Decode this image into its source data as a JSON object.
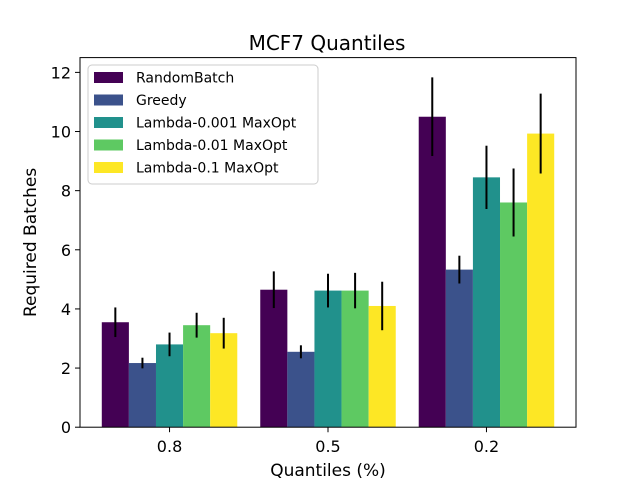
{
  "chart_data": {
    "type": "bar",
    "title": "MCF7 Quantiles",
    "xlabel": "Quantiles (%)",
    "ylabel": "Required Batches",
    "categories": [
      "0.8",
      "0.5",
      "0.2"
    ],
    "ylim": [
      0,
      12.5
    ],
    "yticks": [
      0,
      2,
      4,
      6,
      8,
      10,
      12
    ],
    "legend_position": "top-left",
    "series": [
      {
        "name": "RandomBatch",
        "color": "#440154",
        "values": [
          3.55,
          4.65,
          10.5
        ],
        "errors": [
          0.5,
          0.62,
          1.33
        ]
      },
      {
        "name": "Greedy",
        "color": "#3b528b",
        "values": [
          2.17,
          2.55,
          5.33
        ],
        "errors": [
          0.18,
          0.22,
          0.47
        ]
      },
      {
        "name": "Lambda-0.001 MaxOpt",
        "color": "#21918c",
        "values": [
          2.8,
          4.62,
          8.45
        ],
        "errors": [
          0.4,
          0.57,
          1.07
        ]
      },
      {
        "name": "Lambda-0.01 MaxOpt",
        "color": "#5ec962",
        "values": [
          3.45,
          4.62,
          7.6
        ],
        "errors": [
          0.42,
          0.6,
          1.15
        ]
      },
      {
        "name": "Lambda-0.1 MaxOpt",
        "color": "#fde725",
        "values": [
          3.18,
          4.1,
          9.93
        ],
        "errors": [
          0.52,
          0.82,
          1.35
        ]
      }
    ]
  }
}
